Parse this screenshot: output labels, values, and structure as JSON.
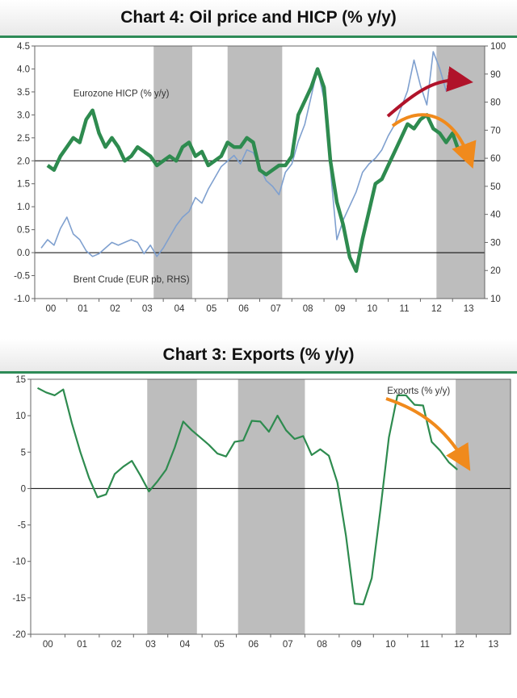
{
  "chart_data": [
    {
      "type": "line",
      "title": "Chart 4: Oil price and HICP (% y/y)",
      "x_ticks": [
        "00",
        "01",
        "02",
        "03",
        "04",
        "05",
        "06",
        "07",
        "08",
        "09",
        "10",
        "11",
        "12",
        "13"
      ],
      "y_left_ticks": [
        "4.5",
        "4.0",
        "3.5",
        "3.0",
        "2.5",
        "2.0",
        "1.5",
        "1.0",
        "0.5",
        "0.0",
        "-0.5",
        "-1.0"
      ],
      "y_right_ticks": [
        "100",
        "90",
        "80",
        "70",
        "60",
        "50",
        "40",
        "30",
        "20",
        "10"
      ],
      "ylim_left": [
        -1.0,
        4.5
      ],
      "ylim_right": [
        10,
        100
      ],
      "xlim": [
        1999.6,
        2013.6
      ],
      "reference_lines": [
        2.0,
        0.0
      ],
      "shaded_periods": [
        [
          2003.3,
          2004.5
        ],
        [
          2005.6,
          2007.3
        ],
        [
          2012.1,
          2013.6
        ]
      ],
      "annotations": [
        {
          "text": "Eurozone HICP (% y/y)",
          "x": 2000.8,
          "y": 3.4
        },
        {
          "text": "Brent Crude (EUR pb, RHS)",
          "x": 2000.8,
          "y": -0.65
        }
      ],
      "series": [
        {
          "name": "Eurozone HICP (% y/y)",
          "axis": "left",
          "color": "#2e8b4f",
          "x": [
            2000.0,
            2000.2,
            2000.4,
            2000.6,
            2000.8,
            2001.0,
            2001.2,
            2001.4,
            2001.6,
            2001.8,
            2002.0,
            2002.2,
            2002.4,
            2002.6,
            2002.8,
            2003.0,
            2003.2,
            2003.4,
            2003.6,
            2003.8,
            2004.0,
            2004.2,
            2004.4,
            2004.6,
            2004.8,
            2005.0,
            2005.2,
            2005.4,
            2005.6,
            2005.8,
            2006.0,
            2006.2,
            2006.4,
            2006.6,
            2006.8,
            2007.0,
            2007.2,
            2007.4,
            2007.6,
            2007.8,
            2008.0,
            2008.2,
            2008.4,
            2008.6,
            2008.8,
            2009.0,
            2009.2,
            2009.4,
            2009.6,
            2009.8,
            2010.0,
            2010.2,
            2010.4,
            2010.6,
            2010.8,
            2011.0,
            2011.2,
            2011.4,
            2011.6,
            2011.8,
            2012.0,
            2012.2,
            2012.4,
            2012.6,
            2012.8
          ],
          "y": [
            1.9,
            1.8,
            2.1,
            2.3,
            2.5,
            2.4,
            2.9,
            3.1,
            2.6,
            2.3,
            2.5,
            2.3,
            2.0,
            2.1,
            2.3,
            2.2,
            2.1,
            1.9,
            2.0,
            2.1,
            2.0,
            2.3,
            2.4,
            2.1,
            2.2,
            1.9,
            2.0,
            2.1,
            2.4,
            2.3,
            2.3,
            2.5,
            2.4,
            1.8,
            1.7,
            1.8,
            1.9,
            1.9,
            2.1,
            3.0,
            3.3,
            3.6,
            4.0,
            3.6,
            2.0,
            1.1,
            0.6,
            -0.1,
            -0.4,
            0.3,
            0.9,
            1.5,
            1.6,
            1.9,
            2.2,
            2.5,
            2.8,
            2.7,
            2.9,
            3.0,
            2.7,
            2.6,
            2.4,
            2.6,
            2.2
          ]
        },
        {
          "name": "Brent Crude (EUR pb, RHS)",
          "axis": "right",
          "color": "#7fa0cf",
          "x": [
            1999.8,
            2000.0,
            2000.2,
            2000.4,
            2000.6,
            2000.8,
            2001.0,
            2001.2,
            2001.4,
            2001.6,
            2001.8,
            2002.0,
            2002.2,
            2002.4,
            2002.6,
            2002.8,
            2003.0,
            2003.2,
            2003.4,
            2003.6,
            2003.8,
            2004.0,
            2004.2,
            2004.4,
            2004.6,
            2004.8,
            2005.0,
            2005.2,
            2005.4,
            2005.6,
            2005.8,
            2006.0,
            2006.2,
            2006.4,
            2006.6,
            2006.8,
            2007.0,
            2007.2,
            2007.4,
            2007.6,
            2007.8,
            2008.0,
            2008.2,
            2008.4,
            2008.6,
            2008.8,
            2009.0,
            2009.2,
            2009.4,
            2009.6,
            2009.8,
            2010.0,
            2010.2,
            2010.4,
            2010.6,
            2010.8,
            2011.0,
            2011.2,
            2011.4,
            2011.6,
            2011.8,
            2012.0,
            2012.2,
            2012.4,
            2012.6,
            2012.8
          ],
          "y": [
            28,
            31,
            29,
            35,
            39,
            33,
            31,
            27,
            25,
            26,
            28,
            30,
            29,
            30,
            31,
            30,
            26,
            29,
            25,
            28,
            32,
            36,
            39,
            41,
            46,
            44,
            49,
            53,
            57,
            59,
            61,
            58,
            63,
            62,
            57,
            52,
            50,
            47,
            55,
            58,
            66,
            72,
            82,
            92,
            81,
            56,
            31,
            38,
            43,
            48,
            55,
            58,
            60,
            63,
            68,
            72,
            78,
            84,
            95,
            86,
            79,
            98,
            92,
            84,
            88,
            87
          ]
        }
      ]
    },
    {
      "type": "line",
      "title": "Chart 3: Exports (% y/y)",
      "x_ticks": [
        "00",
        "01",
        "02",
        "03",
        "04",
        "05",
        "06",
        "07",
        "08",
        "09",
        "10",
        "11",
        "12",
        "13"
      ],
      "y_ticks": [
        "15",
        "10",
        "5",
        "0",
        "-5",
        "-10",
        "-15",
        "-20"
      ],
      "ylim": [
        -20,
        15
      ],
      "xlim": [
        1999.6,
        2013.6
      ],
      "reference_lines": [
        0
      ],
      "shaded_periods": [
        [
          2003.0,
          2004.45
        ],
        [
          2005.65,
          2007.6
        ],
        [
          2012.0,
          2013.6
        ]
      ],
      "annotations": [
        {
          "text": "Exports (% y/y)",
          "x": 2010.0,
          "y": 13.0
        }
      ],
      "series": [
        {
          "name": "Exports (% y/y)",
          "color": "#2e8b4f",
          "x": [
            1999.8,
            2000.05,
            2000.3,
            2000.55,
            2000.8,
            2001.05,
            2001.3,
            2001.55,
            2001.8,
            2002.05,
            2002.3,
            2002.55,
            2002.8,
            2003.05,
            2003.3,
            2003.55,
            2003.8,
            2004.05,
            2004.3,
            2004.55,
            2004.8,
            2005.05,
            2005.3,
            2005.55,
            2005.8,
            2006.05,
            2006.3,
            2006.55,
            2006.8,
            2007.05,
            2007.3,
            2007.55,
            2007.8,
            2008.05,
            2008.3,
            2008.55,
            2008.8,
            2009.05,
            2009.3,
            2009.55,
            2009.8,
            2010.05,
            2010.3,
            2010.55,
            2010.8,
            2011.05,
            2011.3,
            2011.55,
            2011.8,
            2012.05
          ],
          "y": [
            13.8,
            13.2,
            12.8,
            13.6,
            9.0,
            5.0,
            1.5,
            -1.2,
            -0.8,
            2.0,
            3.0,
            3.8,
            1.8,
            -0.4,
            1.0,
            2.6,
            5.6,
            9.2,
            8.0,
            7.0,
            6.0,
            4.8,
            4.4,
            6.4,
            6.6,
            9.3,
            9.2,
            7.8,
            10.0,
            8.0,
            6.8,
            7.2,
            4.6,
            5.4,
            4.5,
            0.8,
            -6.5,
            -15.8,
            -15.9,
            -12.3,
            -3.0,
            7.0,
            12.8,
            12.8,
            11.5,
            11.4,
            6.4,
            5.2,
            3.6,
            2.6
          ]
        }
      ]
    }
  ]
}
